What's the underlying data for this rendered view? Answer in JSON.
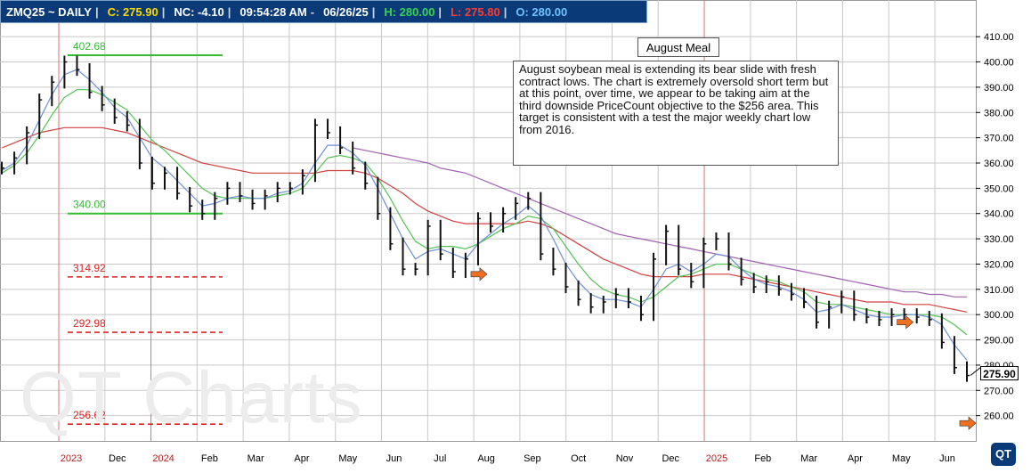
{
  "header": {
    "symbol": "ZMQ25 ~ DAILY",
    "divider": "|",
    "close": "C: 275.90",
    "net_change": "NC: -4.10",
    "time": "09:54:28 AM",
    "dash": "-",
    "date": "06/26/25",
    "high": "H: 280.00",
    "low": "L: 275.80",
    "open": "O: 280.00"
  },
  "colors": {
    "header_bg": "#0a3a78",
    "close": "#ffd800",
    "net_change": "#ff3b30",
    "high": "#39d353",
    "low": "#ff3b30",
    "open": "#6fc3ff",
    "grid": "#c8c8c8",
    "year_line": "#e07070",
    "ma_fast": "#6f8fd6",
    "ma_mid": "#55c055",
    "ma_slow": "#d04040",
    "ma_long": "#a060b0",
    "target_green": "#33bb33",
    "target_red": "#dd2222",
    "arrow": "#f07020"
  },
  "annotation": {
    "title": "August Meal",
    "text": "August soybean meal is extending its bear slide with fresh contract lows.  The chart is extremely oversold short term but at this point, over time, we appear to be taking aim at the third downside PriceCount objective to the $256 area.  This target is consistent with a test the major weekly chart low from 2016."
  },
  "watermark": "QT Charts",
  "logo": "QT",
  "last_price_label": "275.90",
  "chart_data": {
    "type": "line",
    "title": "",
    "xlabel": "",
    "ylabel": "",
    "ylim": [
      250,
      415
    ],
    "y_ticks": [
      "410.00",
      "400.00",
      "390.00",
      "380.00",
      "370.00",
      "360.00",
      "350.00",
      "340.00",
      "330.00",
      "320.00",
      "310.00",
      "300.00",
      "290.00",
      "280.00",
      "270.00",
      "260.00"
    ],
    "x_ticks": [
      "2023",
      "Dec",
      "2024",
      "Feb",
      "Mar",
      "Apr",
      "May",
      "Jun",
      "Jul",
      "Aug",
      "Sep",
      "Oct",
      "Nov",
      "Dec",
      "2025",
      "Feb",
      "Mar",
      "Apr",
      "May",
      "Jun"
    ],
    "x_tick_year_flags": [
      true,
      false,
      true,
      false,
      false,
      false,
      false,
      false,
      false,
      false,
      false,
      false,
      false,
      false,
      true,
      false,
      false,
      false,
      false,
      false
    ],
    "grid": true,
    "price_levels": [
      {
        "label": "402.68",
        "value": 402.68,
        "style": "solid",
        "color": "green"
      },
      {
        "label": "340.00",
        "value": 340.0,
        "style": "solid",
        "color": "green"
      },
      {
        "label": "314.92",
        "value": 314.92,
        "style": "dashed",
        "color": "red"
      },
      {
        "label": "292.98",
        "value": 292.98,
        "style": "dashed",
        "color": "red"
      },
      {
        "label": "256.62",
        "value": 256.62,
        "style": "dashed",
        "color": "red"
      }
    ],
    "series": [
      {
        "key": "price",
        "values": [
          358,
          362,
          372,
          385,
          392,
          400,
          397,
          388,
          383,
          378,
          375,
          360,
          352,
          356,
          348,
          343,
          340,
          346,
          350,
          347,
          344,
          347,
          350,
          350,
          355,
          375,
          372,
          366,
          358,
          352,
          340,
          328,
          318,
          318,
          335,
          324,
          317,
          322,
          338,
          335,
          340,
          344,
          346,
          324,
          318,
          311,
          306,
          303,
          305,
          308,
          305,
          300,
          322,
          333,
          318,
          313,
          328,
          330,
          320,
          314,
          311,
          313,
          310,
          308,
          305,
          297,
          303,
          307,
          300,
          299,
          298,
          300,
          300,
          299,
          298,
          289,
          279,
          275.9
        ]
      },
      {
        "key": "ma_fast",
        "values": [
          357,
          360,
          367,
          377,
          387,
          395,
          397,
          393,
          388,
          382,
          378,
          370,
          362,
          358,
          353,
          348,
          343,
          344,
          346,
          347,
          346,
          346,
          348,
          349,
          352,
          360,
          367,
          367,
          364,
          359,
          350,
          340,
          330,
          322,
          325,
          326,
          324,
          322,
          328,
          332,
          336,
          339,
          343,
          339,
          330,
          320,
          313,
          308,
          306,
          306,
          305,
          303,
          310,
          318,
          320,
          317,
          320,
          324,
          323,
          318,
          314,
          312,
          311,
          309,
          306,
          301,
          302,
          304,
          302,
          300,
          299,
          299,
          300,
          300,
          299,
          296,
          288,
          282
        ]
      },
      {
        "key": "ma_mid",
        "values": [
          356,
          359,
          364,
          371,
          379,
          386,
          389,
          389,
          387,
          384,
          381,
          375,
          369,
          365,
          360,
          355,
          350,
          347,
          346,
          346,
          346,
          346,
          347,
          348,
          350,
          356,
          362,
          363,
          362,
          360,
          354,
          346,
          337,
          329,
          326,
          327,
          327,
          326,
          328,
          331,
          334,
          336,
          339,
          338,
          334,
          327,
          320,
          314,
          310,
          308,
          307,
          305,
          307,
          311,
          315,
          316,
          318,
          320,
          320,
          318,
          316,
          314,
          313,
          311,
          309,
          305,
          304,
          304,
          303,
          302,
          301,
          300,
          300,
          300,
          300,
          299,
          296,
          292
        ]
      },
      {
        "key": "ma_slow",
        "values": [
          366,
          368,
          370,
          372,
          373,
          374,
          374,
          374,
          374,
          373,
          372,
          370,
          368,
          366,
          364,
          362,
          360,
          359,
          358,
          357,
          356,
          356,
          356,
          356,
          356,
          356,
          357,
          357,
          357,
          356,
          354,
          351,
          348,
          344,
          341,
          339,
          337,
          336,
          336,
          336,
          336,
          336,
          337,
          336,
          334,
          331,
          328,
          325,
          322,
          320,
          318,
          316,
          315,
          315,
          315,
          315,
          316,
          316,
          316,
          315,
          314,
          313,
          312,
          311,
          310,
          309,
          308,
          307,
          306,
          305,
          305,
          305,
          304,
          304,
          304,
          303,
          302,
          301
        ]
      },
      {
        "key": "ma_long",
        "values": [
          null,
          null,
          null,
          null,
          null,
          null,
          null,
          null,
          null,
          null,
          null,
          null,
          null,
          null,
          null,
          null,
          null,
          null,
          null,
          null,
          null,
          null,
          null,
          null,
          null,
          null,
          null,
          null,
          366,
          365,
          364,
          363,
          362,
          361,
          360,
          358,
          357,
          356,
          354,
          352,
          350,
          348,
          346,
          344,
          342,
          340,
          338,
          336,
          334,
          332,
          331,
          330,
          329,
          328,
          327,
          326,
          325,
          324,
          323,
          322,
          321,
          320,
          319,
          318,
          317,
          316,
          315,
          314,
          313,
          312,
          311,
          310,
          309,
          309,
          308,
          308,
          307,
          307
        ]
      }
    ],
    "arrows": [
      {
        "x_index": 38,
        "value": 316
      },
      {
        "x_index": 72,
        "value": 297
      },
      {
        "x_index": 77,
        "value": 257
      }
    ]
  }
}
